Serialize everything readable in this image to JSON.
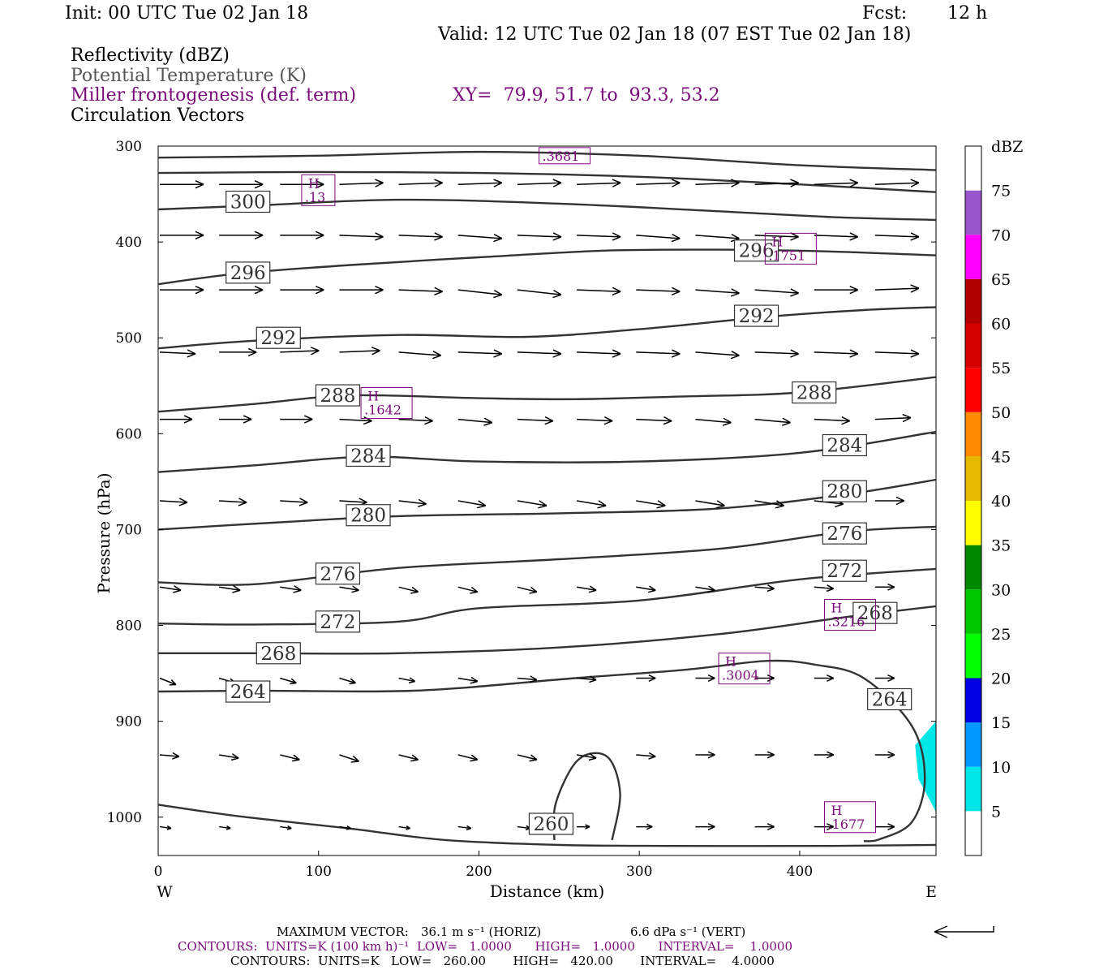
{
  "header": {
    "init": "Init: 00 UTC Tue 02 Jan 18",
    "fcst_label": "Fcst:",
    "fcst_value": "12 h",
    "valid": "Valid: 12 UTC Tue 02 Jan 18 (07 EST Tue 02 Jan 18)",
    "field1": "Reflectivity (dBZ)",
    "field2": "Potential Temperature (K)",
    "field3": "Miller frontogenesis (def. term)",
    "xy": "XY=  79.9, 51.7 to  93.3, 53.2",
    "field4": "Circulation Vectors"
  },
  "chart_data": {
    "type": "cross-section contour",
    "xlabel": "Distance (km)",
    "ylabel": "Pressure (hPa)",
    "xlim": [
      0,
      485
    ],
    "ylim": [
      1040,
      300
    ],
    "x_ticks": [
      0,
      100,
      200,
      300,
      400
    ],
    "y_ticks": [
      300,
      400,
      500,
      600,
      700,
      800,
      900,
      1000
    ],
    "left_end_label": "W",
    "right_end_label": "E",
    "colorbar": {
      "title": "dBZ",
      "labels": [
        "5",
        "10",
        "15",
        "20",
        "25",
        "30",
        "35",
        "40",
        "45",
        "50",
        "55",
        "60",
        "65",
        "70",
        "75"
      ],
      "colors": [
        "#ffffff",
        "#00e5e5",
        "#0099ff",
        "#0000e0",
        "#00ff00",
        "#00c800",
        "#008800",
        "#ffff00",
        "#e6b800",
        "#ff8c00",
        "#ff0000",
        "#d40000",
        "#b00000",
        "#ff00ff",
        "#9955cc",
        "#ffffff"
      ]
    },
    "theta_contours": [
      {
        "label": "300",
        "points": [
          [
            0,
            366
          ],
          [
            60,
            362
          ],
          [
            150,
            356
          ],
          [
            250,
            360
          ],
          [
            350,
            368
          ],
          [
            420,
            374
          ],
          [
            485,
            377
          ]
        ],
        "label_at": [
          [
            56,
            358
          ]
        ]
      },
      {
        "label": "",
        "points": [
          [
            0,
            328
          ],
          [
            100,
            327
          ],
          [
            200,
            328
          ],
          [
            300,
            332
          ],
          [
            400,
            340
          ],
          [
            485,
            348
          ]
        ],
        "label_at": []
      },
      {
        "label": "",
        "points": [
          [
            0,
            312
          ],
          [
            100,
            310
          ],
          [
            200,
            306
          ],
          [
            300,
            310
          ],
          [
            400,
            320
          ],
          [
            485,
            325
          ]
        ],
        "label_at": []
      },
      {
        "label": "296",
        "points": [
          [
            0,
            444
          ],
          [
            50,
            433
          ],
          [
            120,
            424
          ],
          [
            200,
            416
          ],
          [
            280,
            409
          ],
          [
            350,
            408
          ],
          [
            420,
            410
          ],
          [
            485,
            414
          ]
        ],
        "label_at": [
          [
            56,
            432
          ],
          [
            373,
            409
          ]
        ]
      },
      {
        "label": "292",
        "points": [
          [
            0,
            511
          ],
          [
            60,
            503
          ],
          [
            150,
            497
          ],
          [
            230,
            499
          ],
          [
            300,
            491
          ],
          [
            380,
            478
          ],
          [
            440,
            471
          ],
          [
            485,
            468
          ]
        ],
        "label_at": [
          [
            75,
            500
          ],
          [
            373,
            477
          ]
        ]
      },
      {
        "label": "288",
        "points": [
          [
            0,
            577
          ],
          [
            60,
            569
          ],
          [
            120,
            560
          ],
          [
            200,
            563
          ],
          [
            260,
            564
          ],
          [
            330,
            561
          ],
          [
            400,
            557
          ],
          [
            485,
            541
          ]
        ],
        "label_at": [
          [
            112,
            560
          ],
          [
            409,
            557
          ]
        ]
      },
      {
        "label": "284",
        "points": [
          [
            0,
            640
          ],
          [
            60,
            633
          ],
          [
            130,
            624
          ],
          [
            200,
            629
          ],
          [
            300,
            629
          ],
          [
            400,
            620
          ],
          [
            485,
            598
          ]
        ],
        "label_at": [
          [
            131,
            623
          ],
          [
            428,
            612
          ]
        ]
      },
      {
        "label": "280",
        "points": [
          [
            0,
            700
          ],
          [
            80,
            692
          ],
          [
            150,
            686
          ],
          [
            250,
            683
          ],
          [
            350,
            678
          ],
          [
            430,
            663
          ],
          [
            485,
            648
          ]
        ],
        "label_at": [
          [
            131,
            685
          ],
          [
            428,
            660
          ]
        ]
      },
      {
        "label": "276",
        "points": [
          [
            0,
            755
          ],
          [
            60,
            757
          ],
          [
            150,
            740
          ],
          [
            250,
            731
          ],
          [
            350,
            720
          ],
          [
            430,
            702
          ],
          [
            485,
            697
          ]
        ],
        "label_at": [
          [
            112,
            746
          ],
          [
            428,
            704
          ]
        ]
      },
      {
        "label": "272",
        "points": [
          [
            0,
            798
          ],
          [
            60,
            799
          ],
          [
            150,
            796
          ],
          [
            200,
            782
          ],
          [
            300,
            774
          ],
          [
            400,
            752
          ],
          [
            485,
            741
          ]
        ],
        "label_at": [
          [
            112,
            796
          ],
          [
            428,
            743
          ]
        ]
      },
      {
        "label": "268",
        "points": [
          [
            0,
            829
          ],
          [
            60,
            829
          ],
          [
            150,
            829
          ],
          [
            250,
            823
          ],
          [
            350,
            809
          ],
          [
            430,
            791
          ],
          [
            485,
            780
          ]
        ],
        "label_at": [
          [
            75,
            829
          ],
          [
            447,
            787
          ]
        ]
      },
      {
        "label": "264",
        "points": [
          [
            0,
            869
          ],
          [
            60,
            868
          ],
          [
            160,
            868
          ],
          [
            260,
            855
          ],
          [
            330,
            846
          ],
          [
            380,
            837
          ],
          [
            410,
            841
          ],
          [
            440,
            855
          ],
          [
            470,
            905
          ],
          [
            478,
            960
          ],
          [
            470,
            1005
          ],
          [
            450,
            1023
          ],
          [
            440,
            1025
          ]
        ],
        "label_at": [
          [
            56,
            869
          ],
          [
            456,
            877
          ]
        ]
      },
      {
        "label": "260",
        "points": [
          [
            0,
            987
          ],
          [
            50,
            999
          ],
          [
            120,
            1012
          ],
          [
            180,
            1024
          ],
          [
            250,
            1029
          ],
          [
            320,
            1030
          ],
          [
            420,
            1030
          ],
          [
            485,
            1029
          ]
        ],
        "label_at": [
          [
            245,
            1007
          ]
        ]
      },
      {
        "label": "",
        "points": [
          [
            247,
            1024
          ],
          [
            248,
            985
          ],
          [
            262,
            940
          ],
          [
            280,
            937
          ],
          [
            288,
            975
          ],
          [
            283,
            1024
          ]
        ],
        "label_at": []
      }
    ],
    "frontogenesis_maxima": [
      {
        "label": "H",
        "value": ".13",
        "x": 92,
        "y": 346
      },
      {
        "label": "H",
        "value": ".1751",
        "x": 381,
        "y": 407
      },
      {
        "label": "H",
        "value": ".1642",
        "x": 129,
        "y": 568
      },
      {
        "label": "H",
        "value": ".3216",
        "x": 418,
        "y": 789
      },
      {
        "label": "H",
        "value": ".3004",
        "x": 352,
        "y": 845
      },
      {
        "label": "H",
        "value": ".1677",
        "x": 418,
        "y": 1000
      },
      {
        "label": "",
        "value": ".3681",
        "x": 240,
        "y": 310
      }
    ],
    "vectors": [
      {
        "y": 340,
        "x": [
          0,
          37,
          75,
          112,
          149,
          186,
          223,
          260,
          297,
          334,
          371,
          408,
          446,
          482
        ],
        "u": [
          27,
          27,
          27,
          27,
          27,
          27,
          27,
          27,
          27,
          27,
          27,
          27,
          27,
          27
        ],
        "w": [
          0,
          0,
          0,
          -1,
          -1,
          -1,
          -1,
          -1,
          -1,
          -1,
          -1,
          -1,
          -1,
          -1
        ]
      },
      {
        "y": 393,
        "x": [
          0,
          37,
          75,
          112,
          149,
          186,
          223,
          260,
          297,
          334,
          371,
          408,
          446,
          482
        ],
        "u": [
          27,
          27,
          27,
          27,
          27,
          27,
          27,
          27,
          27,
          27,
          27,
          27,
          27,
          27
        ],
        "w": [
          0,
          0,
          0,
          1,
          1,
          2,
          1,
          1,
          2,
          2,
          1,
          1,
          1,
          1
        ]
      },
      {
        "y": 450,
        "x": [
          0,
          37,
          75,
          112,
          149,
          186,
          223,
          260,
          297,
          334,
          371,
          408,
          446,
          482
        ],
        "u": [
          27,
          27,
          27,
          27,
          27,
          27,
          27,
          27,
          27,
          27,
          27,
          27,
          27,
          27
        ],
        "w": [
          0,
          0,
          0,
          0,
          1,
          3,
          3,
          1,
          1,
          2,
          2,
          0,
          -1,
          -1
        ]
      },
      {
        "y": 515,
        "x": [
          0,
          37,
          75,
          112,
          149,
          186,
          223,
          260,
          297,
          334,
          371,
          408,
          446,
          482
        ],
        "u": [
          22,
          23,
          24,
          25,
          26,
          27,
          27,
          27,
          27,
          27,
          27,
          27,
          27,
          27
        ],
        "w": [
          1,
          0,
          -1,
          -1,
          2,
          1,
          1,
          1,
          1,
          2,
          1,
          1,
          1,
          -2
        ]
      },
      {
        "y": 585,
        "x": [
          0,
          37,
          75,
          112,
          149,
          186,
          223,
          260,
          297,
          334,
          371,
          408,
          446,
          482
        ],
        "u": [
          20,
          20,
          20,
          20,
          21,
          21,
          22,
          22,
          22,
          22,
          22,
          22,
          22,
          22
        ],
        "w": [
          0,
          0,
          0,
          1,
          1,
          2,
          1,
          1,
          1,
          2,
          2,
          1,
          -1,
          -1
        ]
      },
      {
        "y": 670,
        "x": [
          0,
          37,
          75,
          112,
          149,
          186,
          223,
          260,
          297,
          334,
          371,
          408,
          446,
          482
        ],
        "u": [
          17,
          17,
          17,
          17,
          17,
          17,
          18,
          18,
          18,
          18,
          18,
          18,
          18,
          18
        ],
        "w": [
          1,
          1,
          1,
          1,
          2,
          3,
          3,
          3,
          3,
          3,
          3,
          2,
          0,
          0
        ]
      },
      {
        "y": 760,
        "x": [
          0,
          37,
          75,
          112,
          149,
          186,
          223,
          260,
          297,
          334,
          371,
          408,
          446,
          482
        ],
        "u": [
          13,
          13,
          13,
          12,
          12,
          12,
          12,
          12,
          12,
          12,
          12,
          12,
          12,
          12
        ],
        "w": [
          2,
          2,
          2,
          2,
          3,
          3,
          3,
          2,
          2,
          2,
          1,
          1,
          0,
          0
        ]
      },
      {
        "y": 855,
        "x": [
          0,
          37,
          75,
          112,
          149,
          186,
          223,
          260,
          297,
          334,
          371,
          408,
          446,
          482
        ],
        "u": [
          10,
          10,
          10,
          10,
          10,
          12,
          12,
          12,
          12,
          12,
          12,
          12,
          12,
          12
        ],
        "w": [
          4,
          3,
          3,
          3,
          2,
          2,
          1,
          1,
          0,
          0,
          0,
          0,
          0,
          0
        ]
      },
      {
        "y": 935,
        "x": [
          0,
          37,
          75,
          112,
          149,
          186,
          223,
          260,
          297,
          334,
          371,
          408,
          446,
          482
        ],
        "u": [
          12,
          12,
          12,
          12,
          12,
          12,
          12,
          12,
          12,
          12,
          12,
          12,
          12,
          12
        ],
        "w": [
          1,
          2,
          3,
          4,
          3,
          3,
          3,
          2,
          1,
          0,
          0,
          0,
          0,
          0
        ]
      },
      {
        "y": 1010,
        "x": [
          0,
          37,
          75,
          112,
          149,
          186,
          223,
          260,
          297,
          334,
          371,
          408,
          446,
          482
        ],
        "u": [
          7,
          7,
          7,
          7,
          7,
          8,
          8,
          8,
          10,
          12,
          12,
          12,
          12,
          12
        ],
        "w": [
          1,
          1,
          1,
          1,
          1,
          1,
          1,
          0,
          0,
          0,
          0,
          0,
          0,
          0
        ]
      }
    ],
    "reflectivity_patches": [
      {
        "color": "#00e5e5",
        "points": [
          [
            485,
            900
          ],
          [
            472,
            925
          ],
          [
            474,
            960
          ],
          [
            482,
            985
          ],
          [
            485,
            995
          ]
        ]
      }
    ]
  },
  "footer": {
    "max_vector_label": "MAXIMUM VECTOR:",
    "max_vector_horiz": "36.1 m s⁻¹ (HORIZ)",
    "max_vector_vert": "6.6 dPa s⁻¹ (VERT)",
    "contours1": "CONTOURS:  UNITS=K (100 km h)⁻¹  LOW=   1.0000      HIGH=   1.0000      INTERVAL=    1.0000",
    "contours2": "CONTOURS:  UNITS=K   LOW=   260.00       HIGH=   420.00       INTERVAL=    4.0000"
  }
}
